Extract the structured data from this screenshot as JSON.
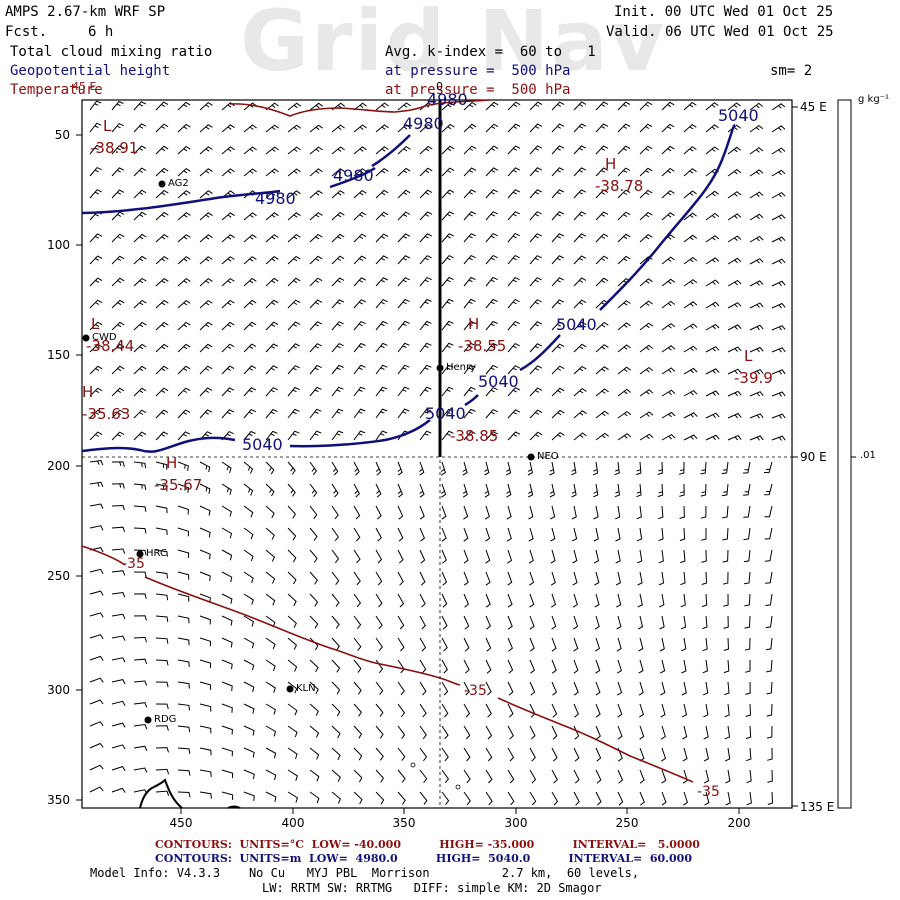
{
  "header": {
    "model": "AMPS 2.67-km WRF SP",
    "fcst_label": "Fcst.",
    "fcst_value": "6 h",
    "init": "Init. 00 UTC Wed 01 Oct 25",
    "valid": "Valid. 06 UTC Wed 01 Oct 25",
    "field1": "Total cloud mixing ratio",
    "field2": "Geopotential height",
    "field3": "Temperature",
    "avg": "Avg. k-index =  60 to   1",
    "pressure_blue": "at pressure =  500 hPa",
    "pressure_red": "at pressure =  500 hPa",
    "smooth": "sm= 2",
    "watermark": "Grid Nav"
  },
  "axes": {
    "left_ticks": [
      "50",
      "100",
      "150",
      "200",
      "250",
      "300",
      "350"
    ],
    "bottom_ticks": [
      "450",
      "400",
      "350",
      "300",
      "250",
      "200"
    ],
    "right_ticks": [
      "45 E",
      "90 E",
      "135 E"
    ],
    "colorbar_unit": "g kg⁻¹",
    "colorbar_value": ".01"
  },
  "stations": [
    {
      "label": "AG2"
    },
    {
      "label": "CWD"
    },
    {
      "label": "Henry"
    },
    {
      "label": "NEO"
    },
    {
      "label": "HRC"
    },
    {
      "label": "KLN"
    },
    {
      "label": "RDG"
    }
  ],
  "contour_labels": {
    "blue": [
      "4980",
      "4980",
      "4980",
      "4980",
      "5040",
      "5040",
      "5040",
      "5040",
      "5040"
    ],
    "red": [
      "-35",
      "-35",
      "-35"
    ],
    "top_fragments": [
      "45 E",
      "0"
    ]
  },
  "extrema": [
    {
      "letter": "L",
      "value": "-38.91"
    },
    {
      "letter": "H",
      "value": "-38.78"
    },
    {
      "letter": "L",
      "value": "-38.44"
    },
    {
      "letter": "H",
      "value": "-38.55"
    },
    {
      "letter": "L",
      "value": "-39.9"
    },
    {
      "letter": "H",
      "value": "-35.63"
    },
    {
      "letter": "H",
      "value": "-35.67"
    },
    {
      "letter": "",
      "value": "-38.85"
    }
  ],
  "footer": {
    "red_contours": "CONTOURS:  UNITS=°C  LOW= -40.000          HIGH= -35.000          INTERVAL=   5.0000",
    "blue_contours": "CONTOURS:  UNITS=m  LOW=  4980.0          HIGH=  5040.0          INTERVAL=  60.000",
    "model_info": "Model Info: V4.3.3    No Cu   MYJ PBL  Morrison          2.7 km,  60 levels,",
    "physics": "LW: RRTM SW: RRTMG   DIFF: simple KM: 2D Smagor"
  },
  "colors": {
    "blue": "#10107a",
    "red": "#8a1010",
    "watermark": "#e8e8e8"
  }
}
